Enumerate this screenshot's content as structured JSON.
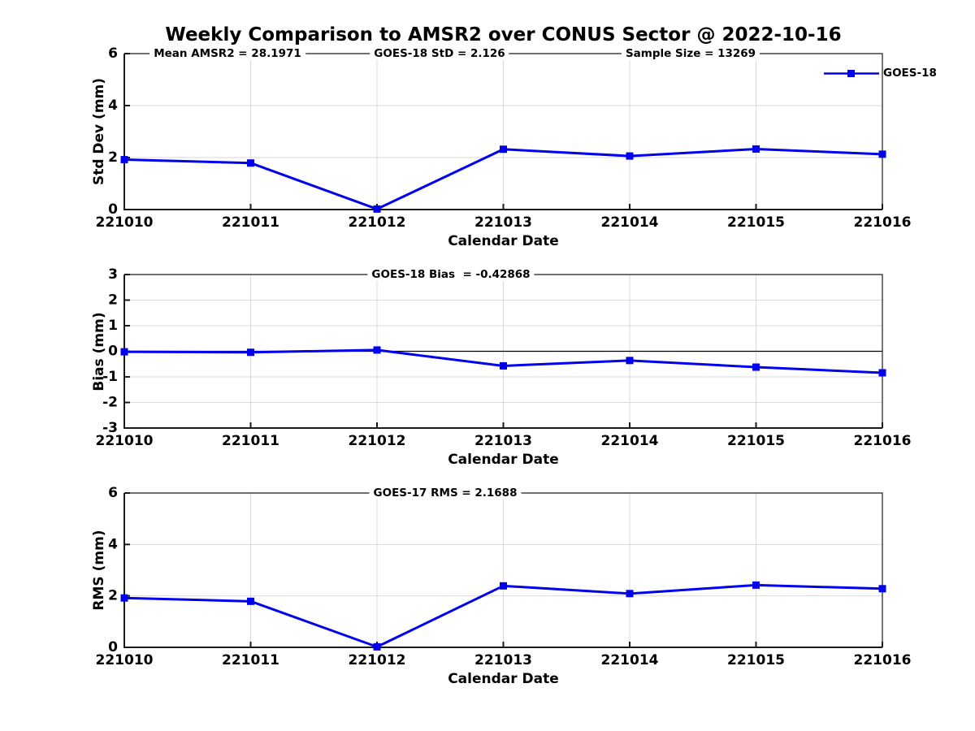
{
  "title": "Weekly Comparison to AMSR2 over CONUS Sector @ 2022-10-16",
  "legend": {
    "label": "GOES-18"
  },
  "colors": {
    "series": "#0000ee",
    "grid": "#d9d9d9",
    "axis": "#1a1a1a",
    "zero_line": "#000000",
    "background": "#ffffff"
  },
  "chart_data": [
    {
      "type": "line",
      "panel": "std_dev",
      "title": "",
      "ylabel": "Std Dev (mm)",
      "xlabel": "Calendar Date",
      "ylim": [
        0,
        6
      ],
      "yticks": [
        0,
        2,
        4,
        6
      ],
      "grid": true,
      "legend_position": "northeast",
      "categories": [
        "221010",
        "221011",
        "221012",
        "221013",
        "221014",
        "221015",
        "221016"
      ],
      "series": [
        {
          "name": "GOES-18",
          "values": [
            1.92,
            1.79,
            0.02,
            2.32,
            2.06,
            2.33,
            2.13
          ]
        }
      ],
      "annotations": [
        "Mean AMSR2 = 28.1971",
        "GOES-18 StD = 2.126",
        "Sample Size = 13269"
      ]
    },
    {
      "type": "line",
      "panel": "bias",
      "title": "",
      "ylabel": "Bias (mm)",
      "xlabel": "Calendar Date",
      "ylim": [
        -3,
        3
      ],
      "yticks": [
        -3,
        -2,
        -1,
        0,
        1,
        2,
        3
      ],
      "grid": true,
      "zero_line": true,
      "categories": [
        "221010",
        "221011",
        "221012",
        "221013",
        "221014",
        "221015",
        "221016"
      ],
      "series": [
        {
          "name": "GOES-18",
          "values": [
            -0.02,
            -0.04,
            0.05,
            -0.57,
            -0.36,
            -0.62,
            -0.84
          ]
        }
      ],
      "annotations": [
        "GOES-18 Bias  = -0.42868"
      ]
    },
    {
      "type": "line",
      "panel": "rms",
      "title": "",
      "ylabel": "RMS (mm)",
      "xlabel": "Calendar Date",
      "ylim": [
        0,
        6
      ],
      "yticks": [
        0,
        2,
        4,
        6
      ],
      "grid": true,
      "categories": [
        "221010",
        "221011",
        "221012",
        "221013",
        "221014",
        "221015",
        "221016"
      ],
      "series": [
        {
          "name": "GOES-18",
          "values": [
            1.92,
            1.79,
            0.02,
            2.39,
            2.09,
            2.42,
            2.28
          ]
        }
      ],
      "annotations": [
        "GOES-17 RMS = 2.1688"
      ]
    }
  ]
}
